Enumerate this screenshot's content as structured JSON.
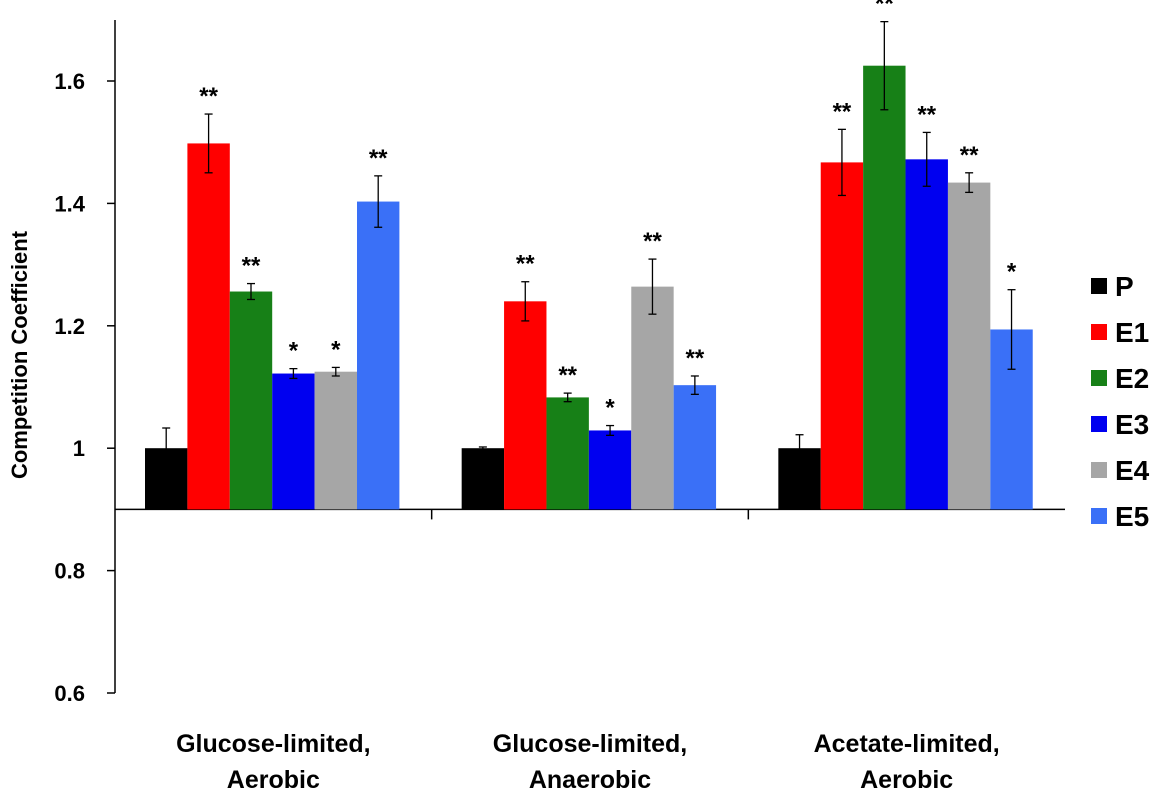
{
  "chart_data": {
    "type": "bar",
    "ylabel": "Competition Coefficient",
    "ylim": [
      0.6,
      1.7
    ],
    "yticks": [
      "0.6",
      "0.8",
      "1",
      "1.2",
      "1.4",
      "1.6"
    ],
    "baseline": 0.9,
    "categories": [
      [
        "Glucose-limited,",
        "Aerobic"
      ],
      [
        "Glucose-limited,",
        "Anaerobic"
      ],
      [
        "Acetate-limited,",
        "Aerobic"
      ]
    ],
    "series": [
      {
        "name": "P",
        "color": "#000000",
        "values": [
          1.0,
          1.0,
          1.0
        ],
        "errors": [
          0.033,
          0.002,
          0.022
        ],
        "sig": [
          "",
          "",
          ""
        ]
      },
      {
        "name": "E1",
        "color": "#ff0000",
        "values": [
          1.498,
          1.24,
          1.467
        ],
        "errors": [
          0.048,
          0.032,
          0.054
        ],
        "sig": [
          "**",
          "**",
          "**"
        ]
      },
      {
        "name": "E2",
        "color": "#178017",
        "values": [
          1.256,
          1.083,
          1.625
        ],
        "errors": [
          0.013,
          0.007,
          0.072
        ],
        "sig": [
          "**",
          "**",
          "**"
        ]
      },
      {
        "name": "E3",
        "color": "#0000f0",
        "values": [
          1.122,
          1.029,
          1.472
        ],
        "errors": [
          0.008,
          0.008,
          0.044
        ],
        "sig": [
          "*",
          "*",
          "**"
        ]
      },
      {
        "name": "E4",
        "color": "#a6a6a6",
        "values": [
          1.125,
          1.264,
          1.434
        ],
        "errors": [
          0.007,
          0.045,
          0.016
        ],
        "sig": [
          "*",
          "**",
          "**"
        ]
      },
      {
        "name": "E5",
        "color": "#3a70f7",
        "values": [
          1.403,
          1.103,
          1.194
        ],
        "errors": [
          0.042,
          0.015,
          0.065
        ],
        "sig": [
          "**",
          "**",
          "*"
        ]
      }
    ],
    "legend": "right",
    "grid": false
  }
}
